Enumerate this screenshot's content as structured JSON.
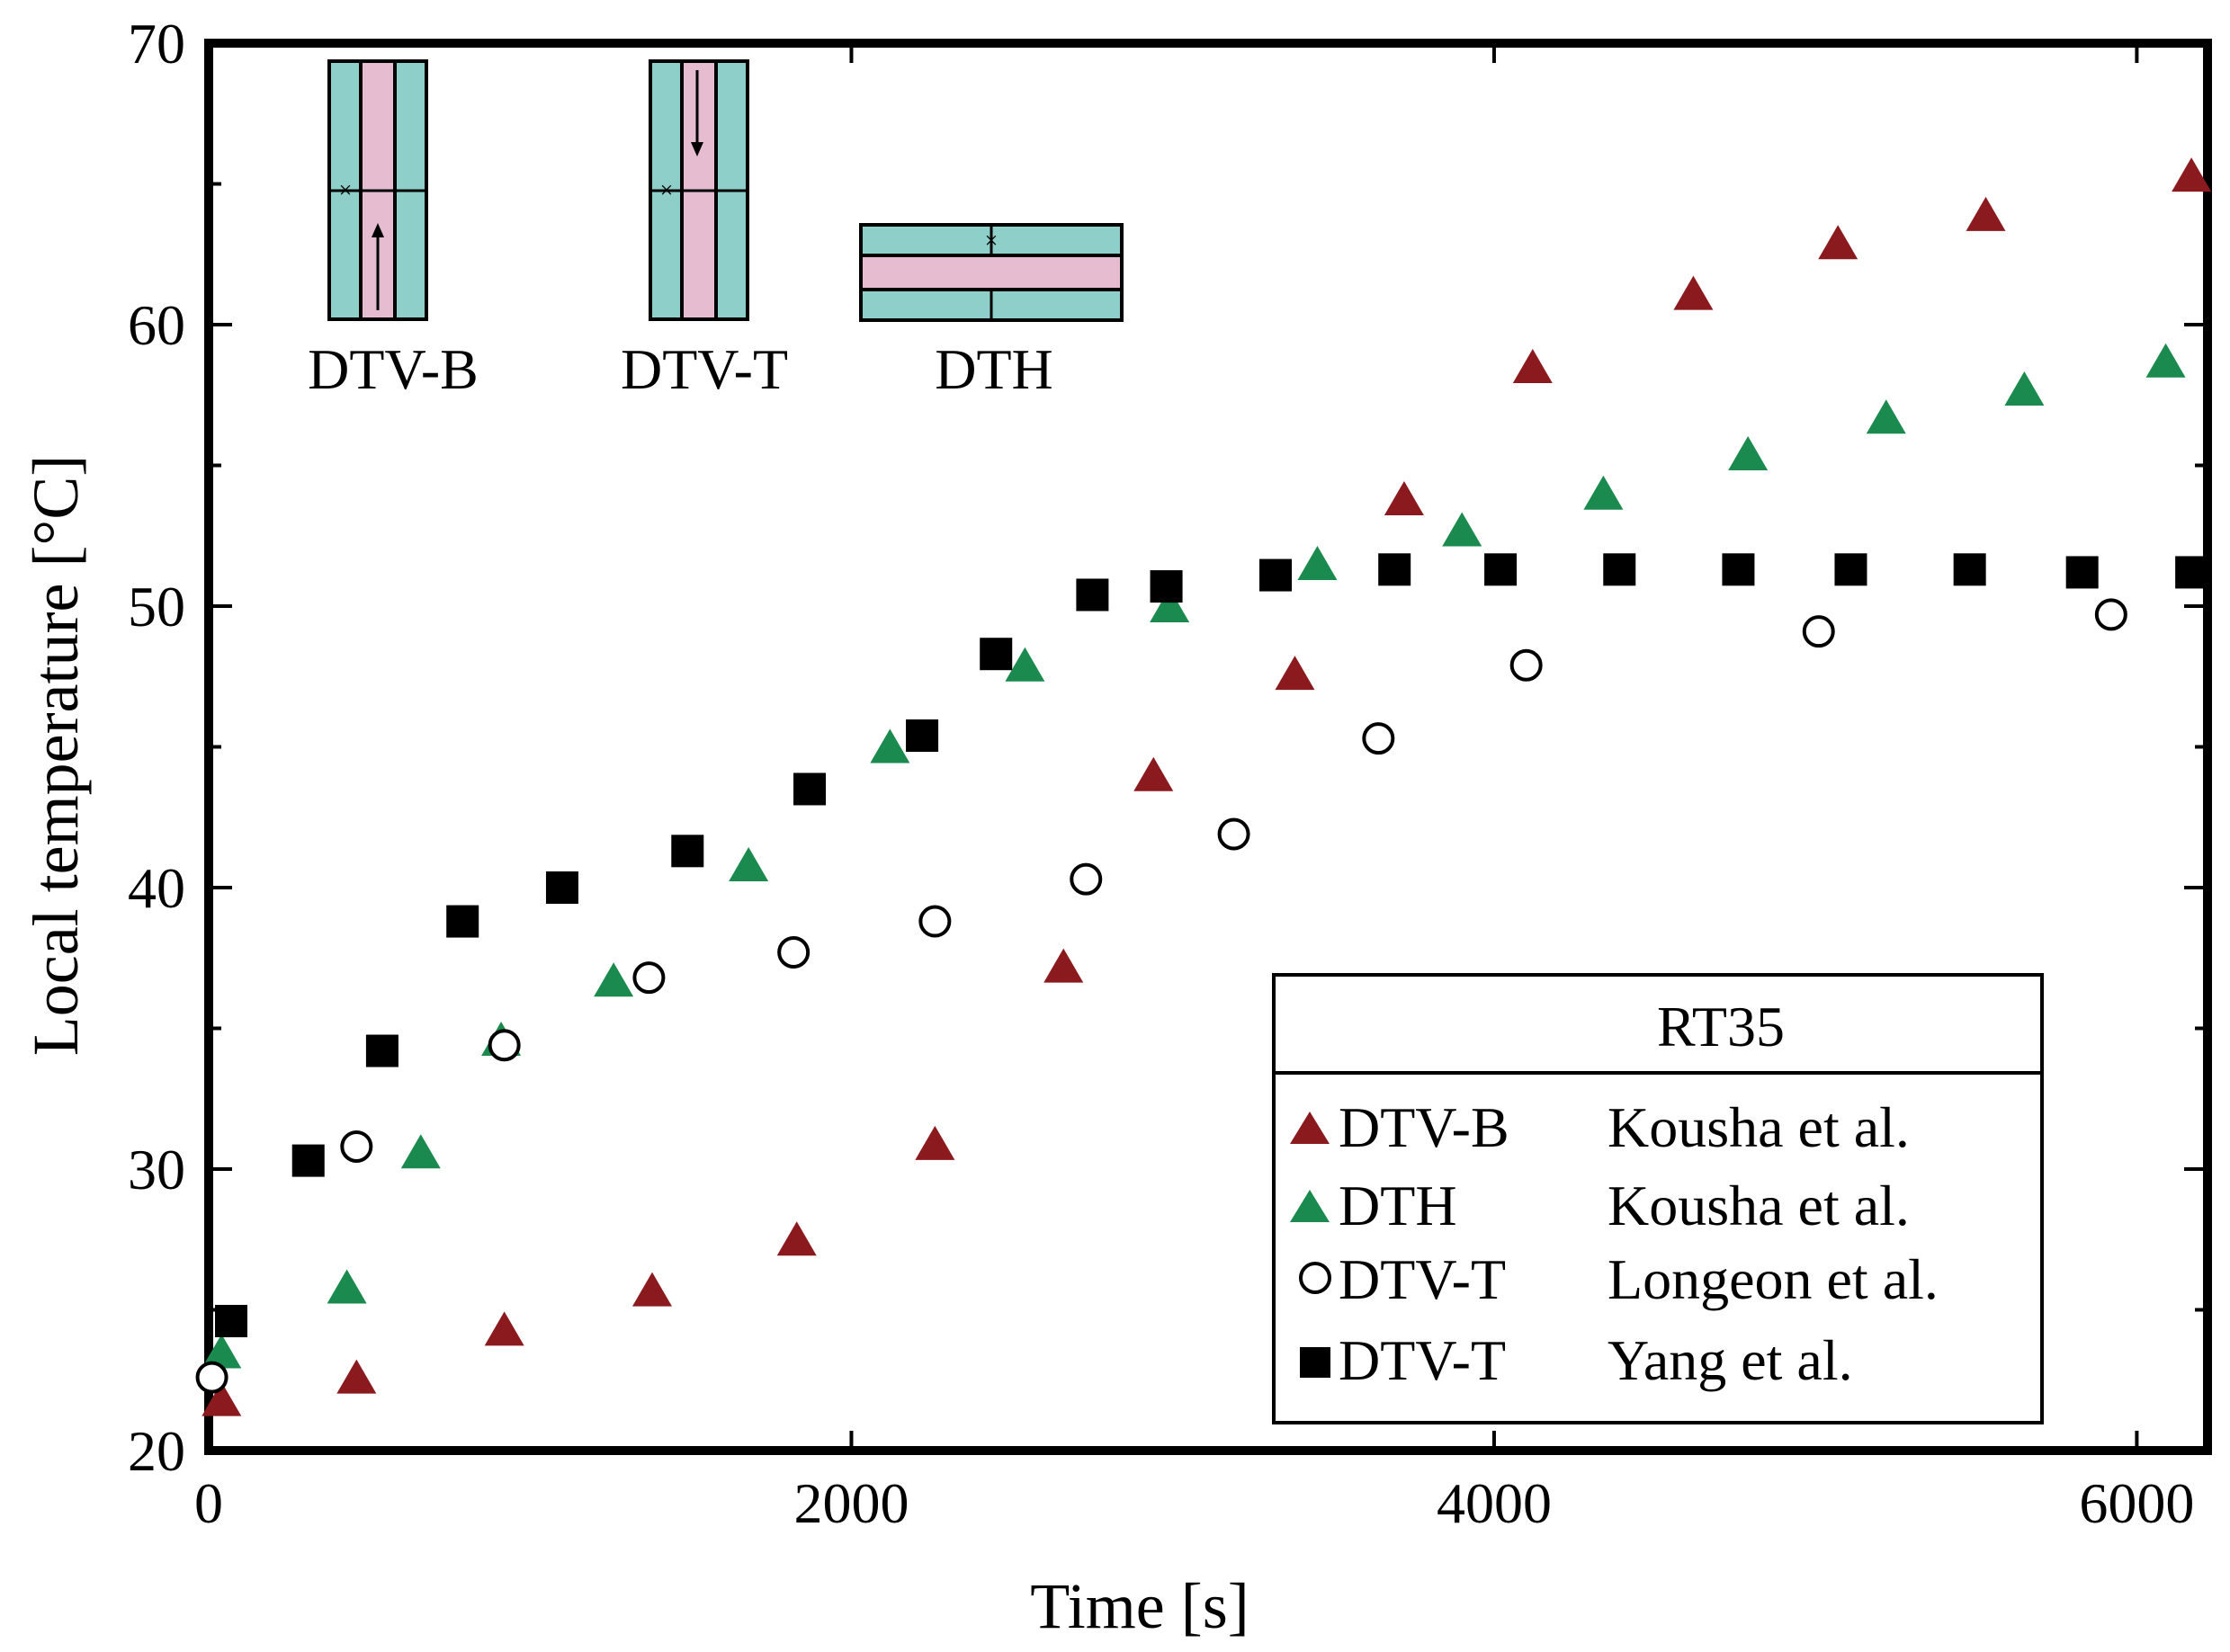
{
  "chart_data": {
    "type": "scatter",
    "title": "",
    "xlabel": "Time [s]",
    "ylabel": "Local temperature [°C]",
    "xlim": [
      0,
      6220
    ],
    "ylim": [
      20,
      70
    ],
    "x_ticks": [
      0,
      2000,
      4000,
      6000
    ],
    "x_tick_labels": [
      "0",
      "2000",
      "4000",
      "6000"
    ],
    "y_ticks": [
      20,
      30,
      40,
      50,
      60,
      70
    ],
    "y_tick_labels": [
      "20",
      "30",
      "40",
      "50",
      "60",
      "70"
    ],
    "y_minor_ticks": [
      25,
      35,
      45,
      55,
      65
    ],
    "legend": {
      "title": "RT35",
      "position": "bottom-right"
    },
    "series": [
      {
        "name": "DTV-B",
        "source": "Kousha et al.",
        "marker": "triangle",
        "color": "#8b1a1f",
        "x": [
          40,
          460,
          920,
          1380,
          1830,
          2260,
          2660,
          2940,
          3380,
          3720,
          4120,
          4620,
          5070,
          5530,
          6170
        ],
        "y": [
          21.8,
          22.6,
          24.3,
          25.7,
          27.5,
          30.9,
          37.2,
          44.0,
          47.6,
          53.8,
          58.5,
          61.1,
          62.9,
          63.9,
          65.3
        ]
      },
      {
        "name": "DTH",
        "source": "Kousha et al.",
        "marker": "triangle",
        "color": "#1b8a4e",
        "x": [
          40,
          430,
          660,
          910,
          1260,
          1680,
          2120,
          2540,
          2990,
          3450,
          3900,
          4340,
          4790,
          5220,
          5650,
          6090
        ],
        "y": [
          23.5,
          25.8,
          30.6,
          34.6,
          36.7,
          40.8,
          45.0,
          47.9,
          50.0,
          51.5,
          52.7,
          54.0,
          55.4,
          56.7,
          57.7,
          58.7
        ]
      },
      {
        "name": "DTV-T",
        "source": "Longeon et al.",
        "marker": "circle-open",
        "color": "#000000",
        "x": [
          10,
          460,
          920,
          1370,
          1820,
          2260,
          2730,
          3190,
          3640,
          4100,
          5010,
          5920
        ],
        "y": [
          22.6,
          30.8,
          34.4,
          36.8,
          37.7,
          38.8,
          40.3,
          41.9,
          45.3,
          47.9,
          49.1,
          49.7
        ]
      },
      {
        "name": "DTV-T",
        "source": "Yang et al.",
        "marker": "square",
        "color": "#000000",
        "x": [
          70,
          310,
          540,
          790,
          1100,
          1490,
          1870,
          2220,
          2450,
          2750,
          2980,
          3320,
          3690,
          4020,
          4390,
          4760,
          5110,
          5480,
          5830,
          6170
        ],
        "y": [
          24.6,
          30.3,
          34.2,
          38.8,
          40.0,
          41.3,
          43.5,
          45.4,
          48.3,
          50.4,
          50.7,
          51.1,
          51.3,
          51.3,
          51.3,
          51.3,
          51.3,
          51.3,
          51.2,
          51.2
        ]
      }
    ],
    "insets": [
      {
        "label": "DTV-B",
        "orientation": "vertical",
        "arrow": "up"
      },
      {
        "label": "DTV-T",
        "orientation": "vertical",
        "arrow": "down"
      },
      {
        "label": "DTH",
        "orientation": "horizontal",
        "arrow": "none"
      }
    ]
  },
  "colors": {
    "inset_outer": "#8ecfc9",
    "inset_inner": "#e5bcd0"
  }
}
